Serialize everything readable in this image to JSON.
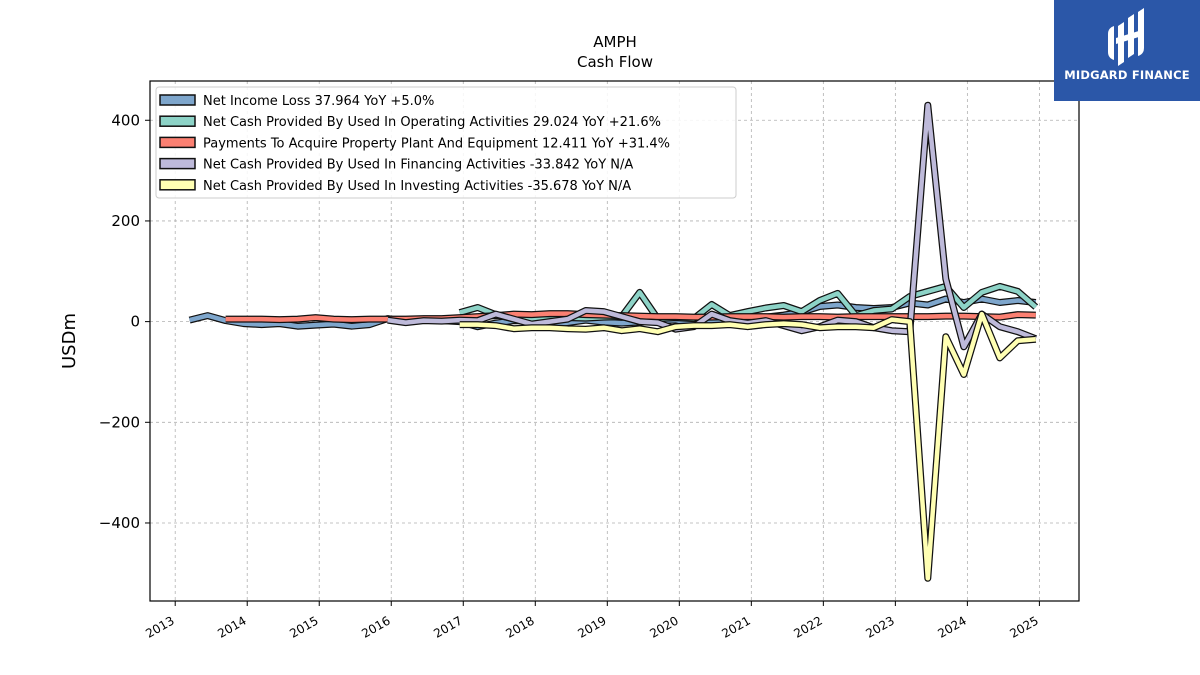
{
  "chart_data": {
    "type": "line",
    "title": "AMPH",
    "subtitle": "Cash Flow",
    "ylabel": "USDm",
    "xlabel": "",
    "xlim": [
      2012.65,
      2025.55
    ],
    "ylim": [
      -555,
      478
    ],
    "grid": true,
    "legend_position": "top-left",
    "x_ticks": [
      "2013",
      "2014",
      "2015",
      "2016",
      "2017",
      "2018",
      "2019",
      "2020",
      "2021",
      "2022",
      "2023",
      "2024",
      "2025"
    ],
    "y_ticks": [
      "400",
      "200",
      "0",
      "−200",
      "−400"
    ],
    "y_tick_values": [
      400,
      200,
      0,
      -200,
      -400
    ],
    "series": [
      {
        "name": "Net Income Loss",
        "legend": "Net Income Loss  37.964 YoY +5.0%",
        "color": "#7ea6cc",
        "x": [
          2013.2,
          2013.45,
          2013.7,
          2013.95,
          2014.2,
          2014.45,
          2014.7,
          2014.95,
          2015.2,
          2015.45,
          2015.7,
          2015.95,
          2016.2,
          2016.45,
          2016.7,
          2016.95,
          2017.2,
          2017.45,
          2017.7,
          2017.95,
          2018.2,
          2018.45,
          2018.7,
          2018.95,
          2019.2,
          2019.45,
          2019.7,
          2019.95,
          2020.2,
          2020.45,
          2020.7,
          2020.95,
          2021.2,
          2021.45,
          2021.7,
          2021.95,
          2022.2,
          2022.45,
          2022.7,
          2022.95,
          2023.2,
          2023.45,
          2023.7,
          2023.95,
          2024.2,
          2024.45,
          2024.7,
          2024.95
        ],
        "values": [
          3,
          12,
          2,
          -4,
          -6,
          -4,
          -9,
          -7,
          -5,
          -9,
          -6,
          6,
          0,
          4,
          2,
          0,
          -10,
          -3,
          2,
          1,
          -7,
          -2,
          3,
          -1,
          -3,
          -1,
          2,
          3,
          -5,
          -2,
          4,
          3,
          9,
          13,
          19,
          30,
          33,
          28,
          26,
          28,
          37,
          33,
          45,
          38,
          45,
          38,
          42,
          38
        ]
      },
      {
        "name": "Net Cash Provided By Used In Operating Activities",
        "legend": "Net Cash Provided By Used In Operating Activities  29.024 YoY +21.6%",
        "color": "#8dd3c7",
        "x": [
          2016.95,
          2017.2,
          2017.45,
          2017.7,
          2017.95,
          2018.2,
          2018.45,
          2018.7,
          2018.95,
          2019.2,
          2019.45,
          2019.7,
          2019.95,
          2020.2,
          2020.45,
          2020.7,
          2020.95,
          2021.2,
          2021.45,
          2021.7,
          2021.95,
          2022.2,
          2022.45,
          2022.7,
          2022.95,
          2023.2,
          2023.45,
          2023.7,
          2023.95,
          2024.2,
          2024.45,
          2024.7,
          2024.95
        ],
        "values": [
          18,
          28,
          14,
          5,
          6,
          4,
          8,
          7,
          9,
          10,
          58,
          6,
          8,
          6,
          34,
          12,
          20,
          27,
          32,
          20,
          42,
          56,
          12,
          22,
          25,
          50,
          60,
          70,
          28,
          58,
          70,
          60,
          29
        ]
      },
      {
        "name": "Payments To Acquire Property Plant And Equipment",
        "legend": "Payments To Acquire Property Plant And Equipment  12.411 YoY +31.4%",
        "color": "#fb8072",
        "x": [
          2013.7,
          2013.95,
          2014.2,
          2014.45,
          2014.7,
          2014.95,
          2015.2,
          2015.45,
          2015.7,
          2015.95,
          2016.2,
          2016.45,
          2016.7,
          2016.95,
          2017.2,
          2017.45,
          2017.7,
          2017.95,
          2018.2,
          2018.45,
          2018.7,
          2018.95,
          2019.2,
          2019.45,
          2019.7,
          2019.95,
          2020.2,
          2020.45,
          2020.7,
          2020.95,
          2021.2,
          2021.45,
          2021.7,
          2021.95,
          2022.2,
          2022.45,
          2022.7,
          2022.95,
          2023.2,
          2023.45,
          2023.7,
          2023.95,
          2024.2,
          2024.45,
          2024.7,
          2024.95
        ],
        "values": [
          5,
          5,
          5,
          4,
          5,
          8,
          5,
          4,
          5,
          5,
          5,
          6,
          6,
          8,
          10,
          12,
          15,
          14,
          16,
          16,
          14,
          13,
          12,
          11,
          10,
          10,
          9,
          9,
          10,
          10,
          10,
          9,
          10,
          10,
          9,
          10,
          10,
          10,
          10,
          10,
          11,
          11,
          10,
          9,
          14,
          13
        ]
      },
      {
        "name": "Net Cash Provided By Used In Financing Activities",
        "legend": "Net Cash Provided By Used In Financing Activities  -33.842 YoY N/A",
        "color": "#bebada",
        "x": [
          2015.95,
          2016.2,
          2016.45,
          2016.7,
          2016.95,
          2017.2,
          2017.45,
          2017.7,
          2017.95,
          2018.2,
          2018.45,
          2018.7,
          2018.95,
          2019.2,
          2019.45,
          2019.7,
          2019.95,
          2020.2,
          2020.45,
          2020.7,
          2020.95,
          2021.2,
          2021.45,
          2021.7,
          2021.95,
          2022.2,
          2022.45,
          2022.7,
          2022.95,
          2023.2,
          2023.45,
          2023.7,
          2023.95,
          2024.2,
          2024.45,
          2024.7,
          2024.95
        ],
        "values": [
          3,
          -2,
          2,
          1,
          3,
          2,
          15,
          5,
          -5,
          0,
          5,
          22,
          20,
          10,
          0,
          -2,
          -15,
          -10,
          15,
          2,
          -3,
          2,
          -8,
          -18,
          -10,
          3,
          0,
          -12,
          -18,
          -20,
          430,
          85,
          -50,
          15,
          -10,
          -20,
          -34
        ]
      },
      {
        "name": "Net Cash Provided By Used In Investing Activities",
        "legend": "Net Cash Provided By Used In Investing Activities  -35.678 YoY N/A",
        "color": "#ffffb3",
        "x": [
          2016.95,
          2017.2,
          2017.45,
          2017.7,
          2017.95,
          2018.2,
          2018.45,
          2018.7,
          2018.95,
          2019.2,
          2019.45,
          2019.7,
          2019.95,
          2020.2,
          2020.45,
          2020.7,
          2020.95,
          2021.2,
          2021.45,
          2021.7,
          2021.95,
          2022.2,
          2022.45,
          2022.7,
          2022.95,
          2023.2,
          2023.45,
          2023.7,
          2023.95,
          2024.2,
          2024.45,
          2024.7,
          2024.95
        ],
        "values": [
          -6,
          -6,
          -8,
          -14,
          -12,
          -12,
          -14,
          -15,
          -12,
          -18,
          -14,
          -20,
          -10,
          -8,
          -8,
          -6,
          -10,
          -6,
          -4,
          -6,
          -12,
          -10,
          -10,
          -12,
          4,
          0,
          -510,
          -30,
          -105,
          15,
          -72,
          -38,
          -35
        ]
      }
    ]
  },
  "logo": {
    "text": "MIDGARD FINANCE",
    "background": "#2b57a8"
  }
}
